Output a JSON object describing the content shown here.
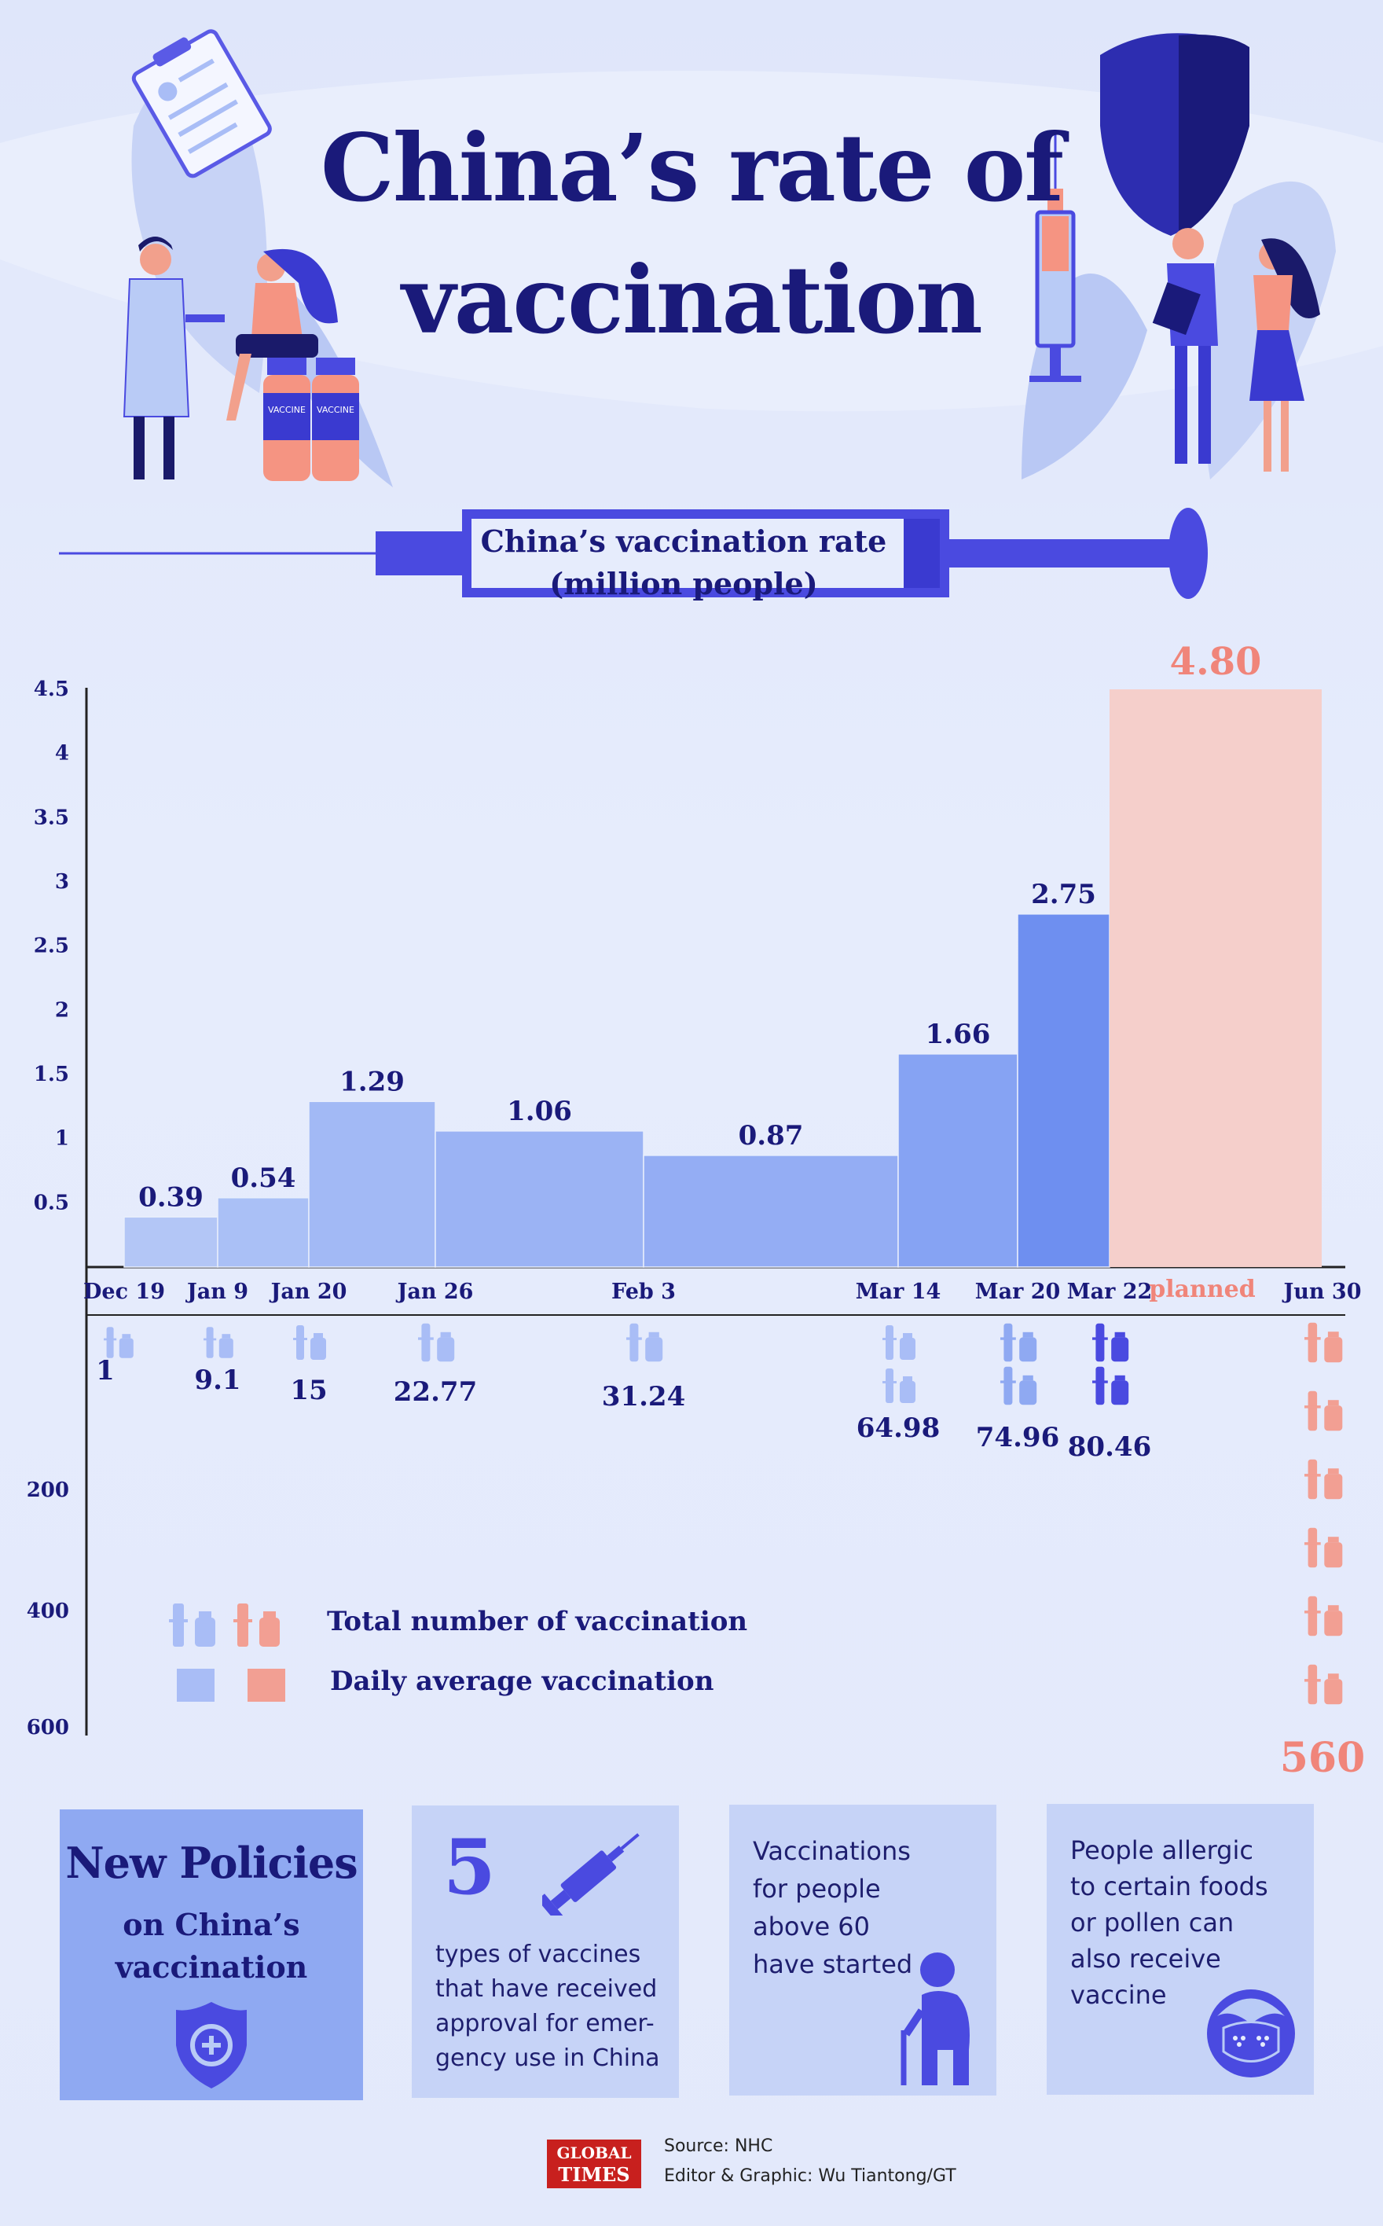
{
  "title": {
    "line1": "China’s rate of",
    "line2": "vaccination"
  },
  "illustration": {
    "vaccine_label_1": "VACCINE",
    "vaccine_label_2": "VACCINE"
  },
  "chart_subtitle": {
    "line1": "China’s vaccination rate",
    "line2": "(million people)"
  },
  "colors": {
    "bar_light": "#a9bdf6",
    "bar_mid": "#9ab0f4",
    "bar_dark": "#7d9bf2",
    "bar_mar22": "#6b8cf0",
    "planned": "#f5cfcb",
    "planned_text": "#f0857a",
    "navy": "#1a1a7a",
    "accent": "#4a4ae0"
  },
  "chart_data": {
    "type": "bar",
    "title": "China’s vaccination rate (million people)",
    "daily_average": {
      "name": "Daily average vaccination",
      "y_ticks": [
        "0.5",
        "1",
        "1.5",
        "2",
        "2.5",
        "3",
        "3.5",
        "4",
        "4.5"
      ],
      "ylim": [
        0,
        4.5
      ],
      "periods": [
        {
          "start": "Dec 19",
          "end": "Jan 9",
          "value": 0.39,
          "label": "0.39"
        },
        {
          "start": "Jan 9",
          "end": "Jan 20",
          "value": 0.54,
          "label": "0.54"
        },
        {
          "start": "Jan 20",
          "end": "Jan 26",
          "value": 1.29,
          "label": "1.29"
        },
        {
          "start": "Jan 26",
          "end": "Feb 3",
          "value": 1.06,
          "label": "1.06"
        },
        {
          "start": "Feb 3",
          "end": "Mar 14",
          "value": 0.87,
          "label": "0.87"
        },
        {
          "start": "Mar 14",
          "end": "Mar 20",
          "value": 1.66,
          "label": "1.66"
        },
        {
          "start": "Mar 20",
          "end": "Mar 22",
          "value": 2.75,
          "label": "2.75"
        },
        {
          "start": "Mar 22",
          "end": "Jun 30",
          "value": 4.8,
          "label": "4.80",
          "planned": true
        }
      ]
    },
    "dates": [
      "Dec 19",
      "Jan 9",
      "Jan 20",
      "Jan 26",
      "Feb 3",
      "Mar 14",
      "Mar 20",
      "Mar 22",
      "Jun 30"
    ],
    "planned_label": "planned",
    "total": {
      "name": "Total number of vaccination",
      "y_ticks": [
        "200",
        "400",
        "600"
      ],
      "points": [
        {
          "date": "Dec 19",
          "value": 1,
          "label": "1"
        },
        {
          "date": "Jan 9",
          "value": 9.1,
          "label": "9.1"
        },
        {
          "date": "Jan 20",
          "value": 15,
          "label": "15"
        },
        {
          "date": "Jan 26",
          "value": 22.77,
          "label": "22.77"
        },
        {
          "date": "Feb 3",
          "value": 31.24,
          "label": "31.24"
        },
        {
          "date": "Mar 14",
          "value": 64.98,
          "label": "64.98"
        },
        {
          "date": "Mar 20",
          "value": 74.96,
          "label": "74.96"
        },
        {
          "date": "Mar 22",
          "value": 80.46,
          "label": "80.46"
        },
        {
          "date": "Jun 30",
          "value": 560,
          "label": "560",
          "planned": true
        }
      ]
    },
    "legend": [
      {
        "label": "Total number of vaccination"
      },
      {
        "label": "Daily average vaccination"
      }
    ]
  },
  "cards": [
    {
      "title": "New Policies",
      "subtitle_line1": "on China’s",
      "subtitle_line2": "vaccination"
    },
    {
      "big_number": "5",
      "lines": [
        "types of vaccines",
        "that have received",
        "approval for emer-",
        "gency use in China"
      ]
    },
    {
      "lines": [
        "Vaccinations",
        "for people",
        "above 60",
        "have started"
      ]
    },
    {
      "lines": [
        "People allergic",
        "to certain foods",
        "or pollen can",
        "also receive",
        "vaccine"
      ]
    }
  ],
  "footer": {
    "logo_line1": "GLOBAL",
    "logo_line2": "TIMES",
    "source": "Source: NHC",
    "credit": "Editor & Graphic: Wu Tiantong/GT"
  }
}
